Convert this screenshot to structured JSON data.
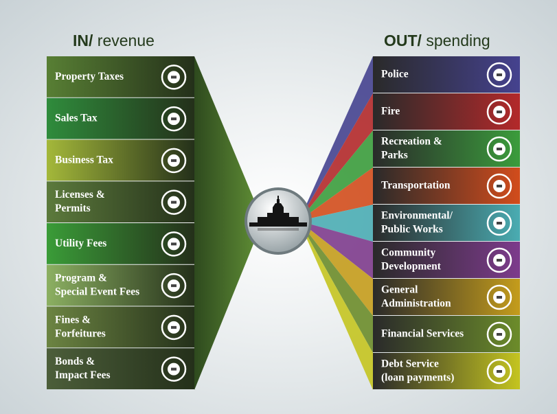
{
  "header": {
    "in_bold": "IN/",
    "in_text": "revenue",
    "out_bold": "OUT/",
    "out_text": "spending"
  },
  "revenue": [
    {
      "lines": [
        "Property Taxes"
      ],
      "color": "#587f34"
    },
    {
      "lines": [
        "Sales Tax"
      ],
      "color": "#2f8c3c"
    },
    {
      "lines": [
        "Business Tax"
      ],
      "color": "#a4b83a"
    },
    {
      "lines": [
        "Licenses &",
        "Permits"
      ],
      "color": "#5c7a3c"
    },
    {
      "lines": [
        "Utility Fees"
      ],
      "color": "#3a9c38"
    },
    {
      "lines": [
        "Program &",
        "Special Event Fees"
      ],
      "color": "#8cb062"
    },
    {
      "lines": [
        "Fines &",
        "Forfeitures"
      ],
      "color": "#6c8442"
    },
    {
      "lines": [
        "Bonds &",
        "Impact Fees"
      ],
      "color": "#4c5e3a"
    }
  ],
  "spending": [
    {
      "lines": [
        "Police"
      ],
      "color": "#45428f"
    },
    {
      "lines": [
        "Fire"
      ],
      "color": "#b3292a"
    },
    {
      "lines": [
        "Recreation &",
        "Parks"
      ],
      "color": "#3b9c3c"
    },
    {
      "lines": [
        "Transportation"
      ],
      "color": "#d24c1c"
    },
    {
      "lines": [
        "Environmental/",
        "Public Works"
      ],
      "color": "#4aacb2"
    },
    {
      "lines": [
        "Community",
        "Development"
      ],
      "color": "#7d3b8c"
    },
    {
      "lines": [
        "General",
        "Administration"
      ],
      "color": "#c49c1c"
    },
    {
      "lines": [
        "Financial Services"
      ],
      "color": "#6c8c2a"
    },
    {
      "lines": [
        "Debt Service",
        "(loan payments)"
      ],
      "color": "#c4c420"
    }
  ]
}
